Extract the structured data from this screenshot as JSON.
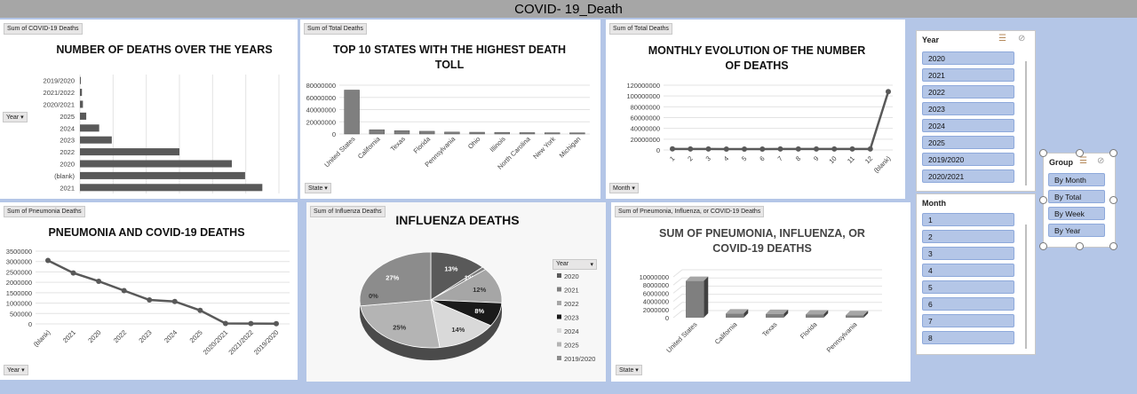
{
  "dashboard_title": "COVID- 19_Death",
  "panels": {
    "p1": {
      "tag": "Sum of COVID-19 Deaths",
      "title": "NUMBER OF DEATHS OVER THE YEARS",
      "filter": "Year"
    },
    "p2": {
      "tag": "Sum of Total Deaths",
      "title_line1": "TOP 10 STATES WITH THE HIGHEST DEATH",
      "title_line2": "TOLL",
      "filter": "State"
    },
    "p3": {
      "tag": "Sum of Total Deaths",
      "title_line1": "MONTHLY EVOLUTION OF THE NUMBER",
      "title_line2": "OF DEATHS",
      "filter": "Month"
    },
    "p4": {
      "tag": "Sum of Pneumonia Deaths",
      "title": "PNEUMONIA AND COVID-19 DEATHS",
      "filter": "Year"
    },
    "p5": {
      "tag": "Sum of Influenza Deaths",
      "title": "INFLUENZA DEATHS",
      "legend_title": "Year"
    },
    "p6": {
      "tag": "Sum of Pneumonia, Influenza, or COVID-19 Deaths",
      "title_line1": "SUM OF PNEUMONIA, INFLUENZA, OR",
      "title_line2": "COVID-19 DEATHS",
      "filter": "State"
    }
  },
  "slicers": {
    "year": {
      "title": "Year",
      "items": [
        "2020",
        "2021",
        "2022",
        "2023",
        "2024",
        "2025",
        "2019/2020",
        "2020/2021"
      ]
    },
    "month": {
      "title": "Month",
      "items": [
        "1",
        "2",
        "3",
        "4",
        "5",
        "6",
        "7",
        "8"
      ]
    },
    "group": {
      "title": "Group",
      "items": [
        "By Month",
        "By Total",
        "By Week",
        "By Year"
      ]
    }
  },
  "colors": {
    "background": "#b4c6e7",
    "titlebar": "#a6a6a6",
    "slicer_item": "#b4c6e7",
    "bar": "#595959"
  },
  "chart_data": [
    {
      "type": "bar",
      "orientation": "horizontal",
      "title": "NUMBER OF DEATHS OVER THE YEARS",
      "categories": [
        "2019/2020",
        "2021/2022",
        "2020/2021",
        "2025",
        "2024",
        "2023",
        "2022",
        "2020",
        "(blank)",
        "2021"
      ],
      "values": [
        12000,
        30000,
        45000,
        95000,
        290000,
        480000,
        1500000,
        2290000,
        2490000,
        2750000
      ],
      "xlim": [
        0,
        3000000
      ],
      "x_ticks": [
        "0",
        "500000",
        "1000000",
        "1500000",
        "2000000",
        "2500000",
        "3000000"
      ],
      "grid": true
    },
    {
      "type": "bar",
      "title": "TOP 10 STATES WITH THE HIGHEST DEATH TOLL",
      "categories": [
        "United States",
        "California",
        "Texas",
        "Florida",
        "Pennsylvania",
        "Ohio",
        "Illinois",
        "North Carolina",
        "New York",
        "Michigan"
      ],
      "values": [
        72000000,
        7000000,
        5500000,
        4500000,
        3200000,
        2900000,
        2700000,
        2300000,
        2100000,
        2000000
      ],
      "ylim": [
        0,
        80000000
      ],
      "y_ticks": [
        "0",
        "20000000",
        "40000000",
        "60000000",
        "80000000"
      ],
      "grid": true
    },
    {
      "type": "line",
      "title": "MONTHLY EVOLUTION OF THE NUMBER OF DEATHS",
      "categories": [
        "1",
        "2",
        "3",
        "4",
        "5",
        "6",
        "7",
        "8",
        "9",
        "10",
        "11",
        "12",
        "(blank)"
      ],
      "values": [
        2000000,
        1800000,
        1800000,
        1700000,
        1700000,
        1700000,
        1800000,
        1900000,
        1800000,
        1800000,
        1800000,
        1900000,
        108000000
      ],
      "ylim": [
        0,
        120000000
      ],
      "y_ticks": [
        "0",
        "20000000",
        "40000000",
        "60000000",
        "80000000",
        "100000000",
        "120000000"
      ],
      "grid": true
    },
    {
      "type": "line",
      "title": "PNEUMONIA AND COVID-19 DEATHS",
      "categories": [
        "(blank)",
        "2021",
        "2020",
        "2022",
        "2023",
        "2024",
        "2025",
        "2020/2021",
        "2021/2022",
        "2019/2020"
      ],
      "values": [
        3050000,
        2450000,
        2050000,
        1600000,
        1150000,
        1080000,
        650000,
        20000,
        15000,
        10000
      ],
      "ylim": [
        0,
        3500000
      ],
      "y_ticks": [
        "0",
        "500000",
        "1000000",
        "1500000",
        "2000000",
        "2500000",
        "3000000",
        "3500000"
      ],
      "grid": true
    },
    {
      "type": "pie",
      "title": "INFLUENZA DEATHS",
      "categories": [
        "2020",
        "2021",
        "2022",
        "2023",
        "2024",
        "2025",
        "2019/2020"
      ],
      "values": [
        13,
        1,
        12,
        8,
        14,
        25,
        27
      ],
      "labels": [
        "13%",
        "1%",
        "12%",
        "8%",
        "14%",
        "25%",
        "27%"
      ],
      "extra_label": "0%",
      "colors": [
        "#595959",
        "#7f7f7f",
        "#a6a6a6",
        "#1a1a1a",
        "#d9d9d9",
        "#b4b4b4",
        "#8c8c8c"
      ],
      "legend_position": "right"
    },
    {
      "type": "bar",
      "title": "SUM OF PNEUMONIA, INFLUENZA, OR COVID-19 DEATHS",
      "categories": [
        "United States",
        "California",
        "Texas",
        "Florida",
        "Pennsylvania"
      ],
      "values": [
        9000000,
        1000000,
        900000,
        800000,
        600000
      ],
      "ylim": [
        0,
        10000000
      ],
      "y_ticks": [
        "0",
        "2000000",
        "4000000",
        "6000000",
        "8000000",
        "10000000"
      ],
      "grid": true
    }
  ]
}
